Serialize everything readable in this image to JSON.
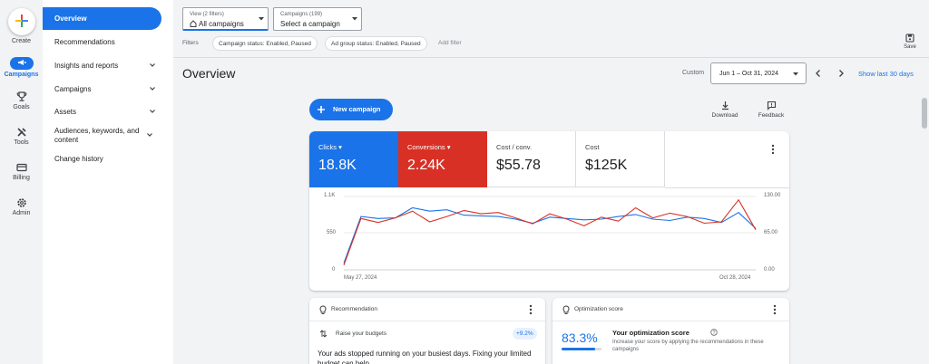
{
  "rail": {
    "create": "Create",
    "campaigns": "Campaigns",
    "goals": "Goals",
    "tools": "Tools",
    "billing": "Billing",
    "admin": "Admin"
  },
  "nav": {
    "overview": "Overview",
    "recommendations": "Recommendations",
    "insights": "Insights and reports",
    "campaigns": "Campaigns",
    "assets": "Assets",
    "audiences": "Audiences, keywords, and content",
    "history": "Change history"
  },
  "header": {
    "view_label": "View (2 filters)",
    "view_value": "All campaigns",
    "campaigns_label": "Campaigns (199)",
    "campaigns_value": "Select a campaign",
    "filters_label": "Filters",
    "chip1": "Campaign status: Enabled, Paused",
    "chip2": "Ad group status: Enabled, Paused",
    "add_filter": "Add filter",
    "save": "Save",
    "title": "Overview",
    "custom": "Custom",
    "date_range": "Jun 1 – Oct 31, 2024",
    "show_last": "Show last 30 days"
  },
  "actions": {
    "new_campaign": "New campaign",
    "download": "Download",
    "feedback": "Feedback"
  },
  "metrics": [
    {
      "label": "Clicks",
      "value": "18.8K",
      "color": "#1a73e8"
    },
    {
      "label": "Conversions",
      "value": "2.24K",
      "color": "#d93025"
    },
    {
      "label": "Cost / conv.",
      "value": "$55.78"
    },
    {
      "label": "Cost",
      "value": "$125K"
    }
  ],
  "chart_data": {
    "type": "line",
    "x_start": "May 27, 2024",
    "x_end": "Oct 28, 2024",
    "y_left_ticks": [
      "1.1K",
      "550",
      "0"
    ],
    "y_right_ticks": [
      "130.00",
      "65.00",
      "0.00"
    ],
    "series": [
      {
        "name": "Clicks",
        "color": "#1a73e8",
        "axis": "left",
        "values": [
          100,
          800,
          770,
          780,
          930,
          880,
          900,
          820,
          810,
          800,
          760,
          700,
          790,
          770,
          750,
          760,
          800,
          830,
          760,
          740,
          790,
          770,
          710,
          860,
          620
        ]
      },
      {
        "name": "Conversions",
        "color": "#d93025",
        "axis": "left",
        "values": [
          70,
          770,
          710,
          780,
          880,
          720,
          800,
          890,
          840,
          860,
          780,
          690,
          840,
          760,
          660,
          790,
          730,
          930,
          780,
          850,
          800,
          700,
          720,
          1050,
          600
        ]
      }
    ]
  },
  "recommendation": {
    "title": "Recommendation",
    "item": "Raise your budgets",
    "badge": "+9.2%",
    "body": "Your ads stopped running on your busiest days. Fixing your limited budget can help"
  },
  "optimization": {
    "title": "Optimization score",
    "score": "83.3%",
    "score_fraction": 0.833,
    "heading": "Your optimization score",
    "desc": "Increase your score by applying the recommendations in these campaigns"
  }
}
